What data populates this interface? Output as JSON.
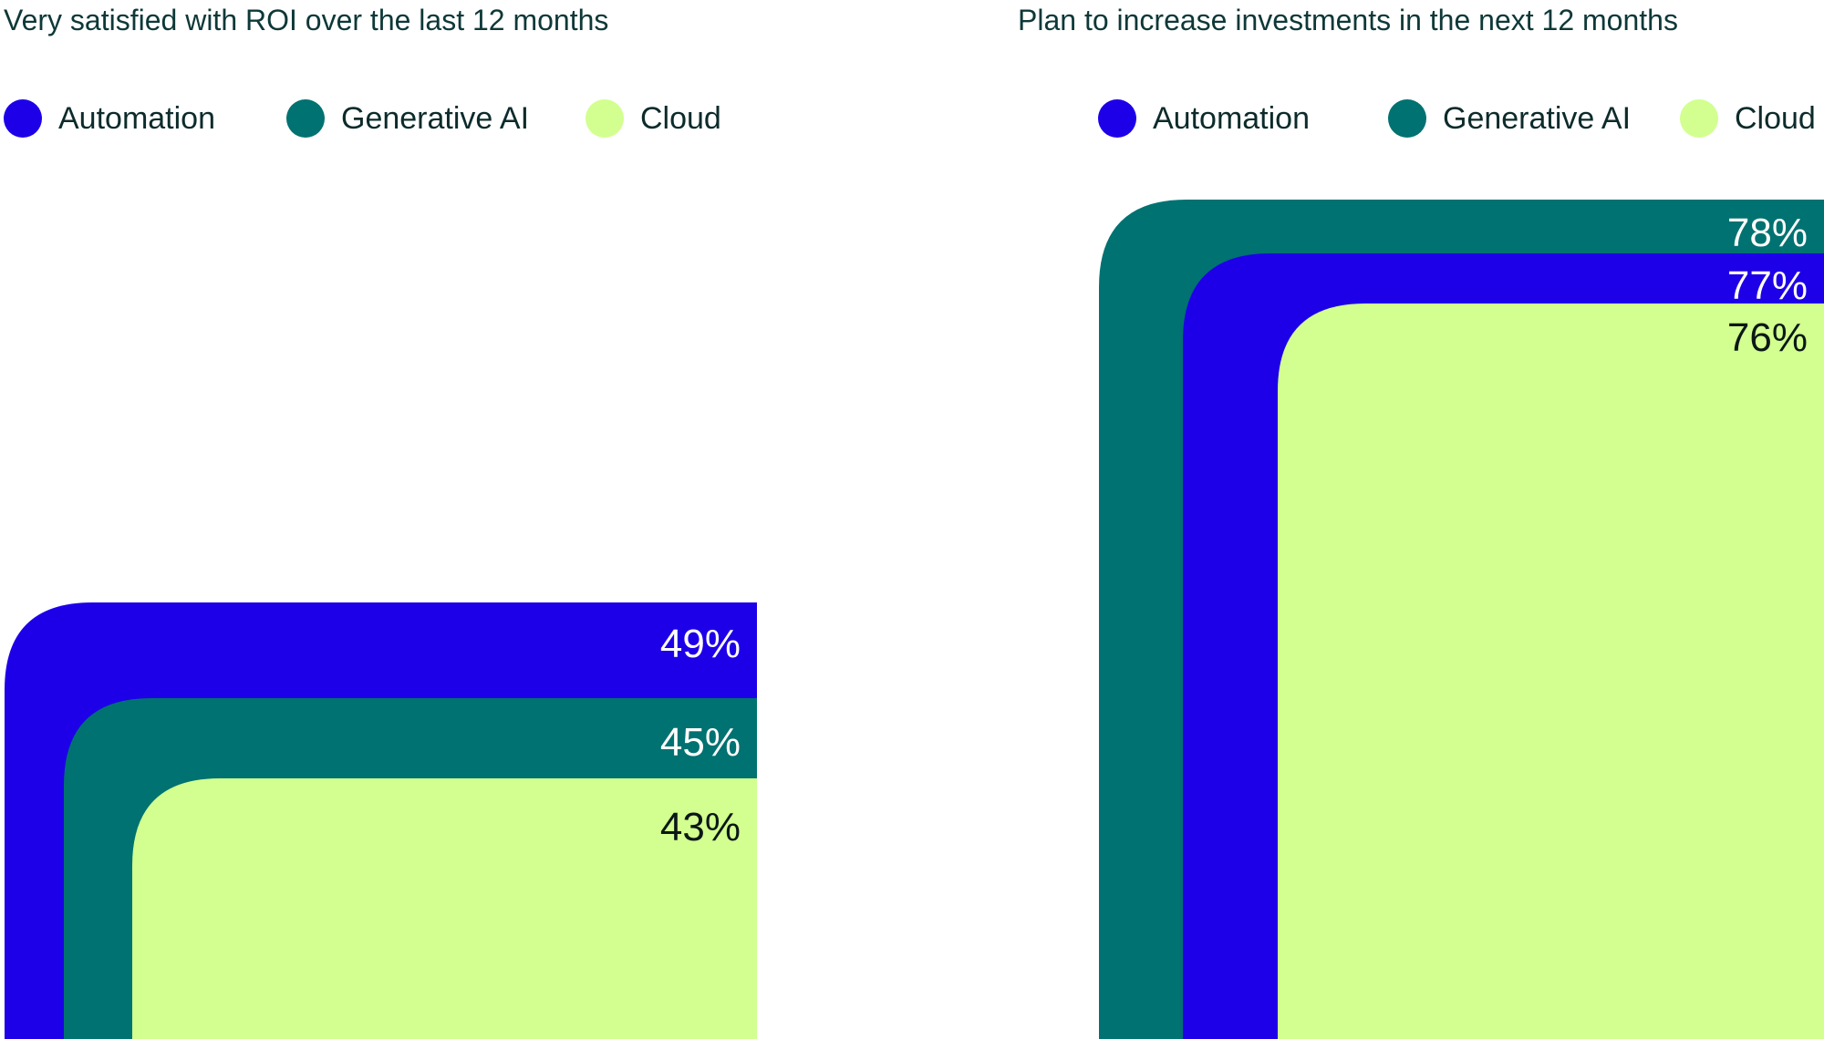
{
  "colors": {
    "Automation": "#1d00e8",
    "Generative AI": "#007271",
    "Cloud": "#d2ff8f",
    "label_on_dark": "#ffffff",
    "label_on_light": "#0b1717"
  },
  "chart_data": [
    {
      "type": "bar",
      "title": "Very satisfied with ROI over the last 12 months",
      "categories": [
        "Automation",
        "Generative AI",
        "Cloud"
      ],
      "values": [
        49,
        45,
        43
      ],
      "labels": [
        "49%",
        "45%",
        "43%"
      ],
      "legend": [
        "Automation",
        "Generative AI",
        "Cloud"
      ],
      "legend_placement": "top",
      "grid": false
    },
    {
      "type": "bar",
      "title": "Plan to increase investments in the next 12 months",
      "categories": [
        "Generative AI",
        "Automation",
        "Cloud"
      ],
      "values": [
        78,
        77,
        76
      ],
      "labels": [
        "78%",
        "77%",
        "76%"
      ],
      "legend": [
        "Automation",
        "Generative AI",
        "Cloud"
      ],
      "legend_placement": "top",
      "grid": false
    }
  ]
}
